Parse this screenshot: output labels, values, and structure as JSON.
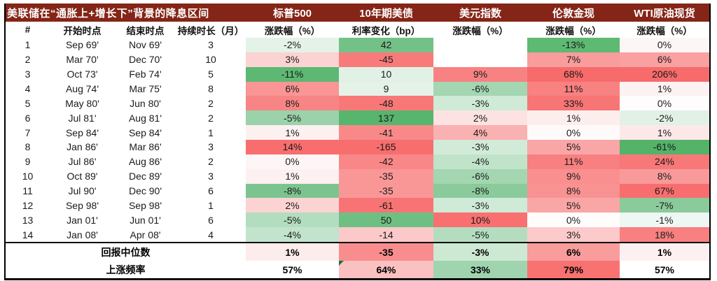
{
  "chart_data": {
    "type": "table",
    "title": "美联储在“通胀上+增长下”背景的降息区间",
    "header_bg": "#842517",
    "group_headers": [
      "标普500",
      "10年期美债",
      "美元指数",
      "伦敦金现",
      "WTI原油现货"
    ],
    "sub_headers": [
      "#",
      "开始时点",
      "结束时点",
      "持续时长（月）",
      "涨跌幅（%）",
      "利率变化（bp）",
      "涨跌幅（%）",
      "涨跌幅（%）",
      "涨跌幅（%）"
    ],
    "series_keys": [
      "sp500",
      "ust10y",
      "dxy",
      "gold",
      "wti"
    ],
    "rows": [
      {
        "n": "1",
        "start": "Sep 69'",
        "end": "Nov 69'",
        "months": "3",
        "values": [
          "-2%",
          "42",
          "",
          "-13%",
          "0%"
        ],
        "colors": [
          "#e4f2e8",
          "#74c187",
          "#ffffff",
          "#5eb973",
          "#fdf6f6"
        ]
      },
      {
        "n": "2",
        "start": "Mar 70'",
        "end": "Dec 70'",
        "months": "10",
        "values": [
          "3%",
          "-45",
          "",
          "7%",
          "6%"
        ],
        "colors": [
          "#fcd3d3",
          "#f87b7b",
          "#ffffff",
          "#f99c9c",
          "#f9a0a0"
        ]
      },
      {
        "n": "3",
        "start": "Oct 73'",
        "end": "Feb 74'",
        "months": "5",
        "values": [
          "-11%",
          "10",
          "9%",
          "68%",
          "206%"
        ],
        "colors": [
          "#5cb873",
          "#e2f1e6",
          "#f88282",
          "#f86b6b",
          "#f86b6b"
        ]
      },
      {
        "n": "4",
        "start": "Aug 74'",
        "end": "Mar 75'",
        "months": "8",
        "values": [
          "6%",
          "9",
          "-6%",
          "11%",
          "1%"
        ],
        "colors": [
          "#f99595",
          "#e4f2e8",
          "#a3d6b1",
          "#f88181",
          "#fdf2f2"
        ]
      },
      {
        "n": "5",
        "start": "May 80'",
        "end": "Jun 80'",
        "months": "2",
        "values": [
          "8%",
          "-48",
          "-3%",
          "33%",
          "0%"
        ],
        "colors": [
          "#f88585",
          "#f87878",
          "#cfead6",
          "#f87575",
          "#fefcfc"
        ]
      },
      {
        "n": "6",
        "start": "Jul 81'",
        "end": "Aug 81'",
        "months": "2",
        "values": [
          "-5%",
          "137",
          "2%",
          "1%",
          "-2%"
        ],
        "colors": [
          "#9bd2aa",
          "#58b56e",
          "#fde2e2",
          "#fdeeee",
          "#e2f1e6"
        ]
      },
      {
        "n": "7",
        "start": "Sep 84'",
        "end": "Sep 84'",
        "months": "1",
        "values": [
          "1%",
          "-41",
          "4%",
          "0%",
          "1%"
        ],
        "colors": [
          "#fdf0f0",
          "#f98989",
          "#fab1b1",
          "#fefafa",
          "#fde8e8"
        ]
      },
      {
        "n": "8",
        "start": "Jan 86'",
        "end": "Mar 86'",
        "months": "3",
        "values": [
          "14%",
          "-165",
          "-3%",
          "5%",
          "-61%"
        ],
        "colors": [
          "#f86e6e",
          "#f86e6e",
          "#d2ebd8",
          "#faa6a6",
          "#54b369"
        ]
      },
      {
        "n": "9",
        "start": "Jul 86'",
        "end": "Aug 86'",
        "months": "2",
        "values": [
          "0%",
          "-42",
          "-4%",
          "11%",
          "24%"
        ],
        "colors": [
          "#fef6f6",
          "#f98787",
          "#c0e3ca",
          "#f88080",
          "#f87878"
        ]
      },
      {
        "n": "10",
        "start": "Oct 89'",
        "end": "Dec 89'",
        "months": "3",
        "values": [
          "1%",
          "-35",
          "-6%",
          "9%",
          "8%"
        ],
        "colors": [
          "#fdf0f0",
          "#f99797",
          "#a3d6b1",
          "#f98f8f",
          "#f99a9a"
        ]
      },
      {
        "n": "11",
        "start": "Jul 90'",
        "end": "Dec 90'",
        "months": "6",
        "values": [
          "-8%",
          "-35",
          "-8%",
          "8%",
          "67%"
        ],
        "colors": [
          "#7cc48f",
          "#f99797",
          "#8aca9b",
          "#f99292",
          "#f86e6e"
        ]
      },
      {
        "n": "12",
        "start": "Sep 98'",
        "end": "Sep 98'",
        "months": "1",
        "values": [
          "2%",
          "-61",
          "-3%",
          "5%",
          "-7%"
        ],
        "colors": [
          "#fcd3d3",
          "#f87474",
          "#cfead6",
          "#faa6a6",
          "#8aca9b"
        ]
      },
      {
        "n": "13",
        "start": "Jan 01'",
        "end": "Jun 01'",
        "months": "6",
        "values": [
          "-5%",
          "50",
          "10%",
          "0%",
          "-1%"
        ],
        "colors": [
          "#b2ddbe",
          "#6fbf83",
          "#f87070",
          "#fffcfc",
          "#eef7f1"
        ]
      },
      {
        "n": "14",
        "start": "Jan 08'",
        "end": "Apr 08'",
        "months": "4",
        "values": [
          "-4%",
          "-14",
          "-5%",
          "3%",
          "18%"
        ],
        "colors": [
          "#c3e4cc",
          "#fbc9c9",
          "#b4ddc0",
          "#fccaca",
          "#f88080"
        ]
      }
    ],
    "summary_rows": [
      {
        "label": "回报中位数",
        "values": [
          "1%",
          "-35",
          "-3%",
          "6%",
          "1%"
        ],
        "colors": [
          "#fdecec",
          "#f98d8d",
          "#cde9d4",
          "#f99c9c",
          "#fdf0f0"
        ],
        "marker_index": null
      },
      {
        "label": "上涨频率",
        "values": [
          "57%",
          "64%",
          "33%",
          "79%",
          "57%"
        ],
        "colors": [
          "#ffffff",
          "#fbc0c0",
          "#a0d4ae",
          "#f87272",
          "#ffffff"
        ],
        "marker_index": 1
      }
    ]
  }
}
